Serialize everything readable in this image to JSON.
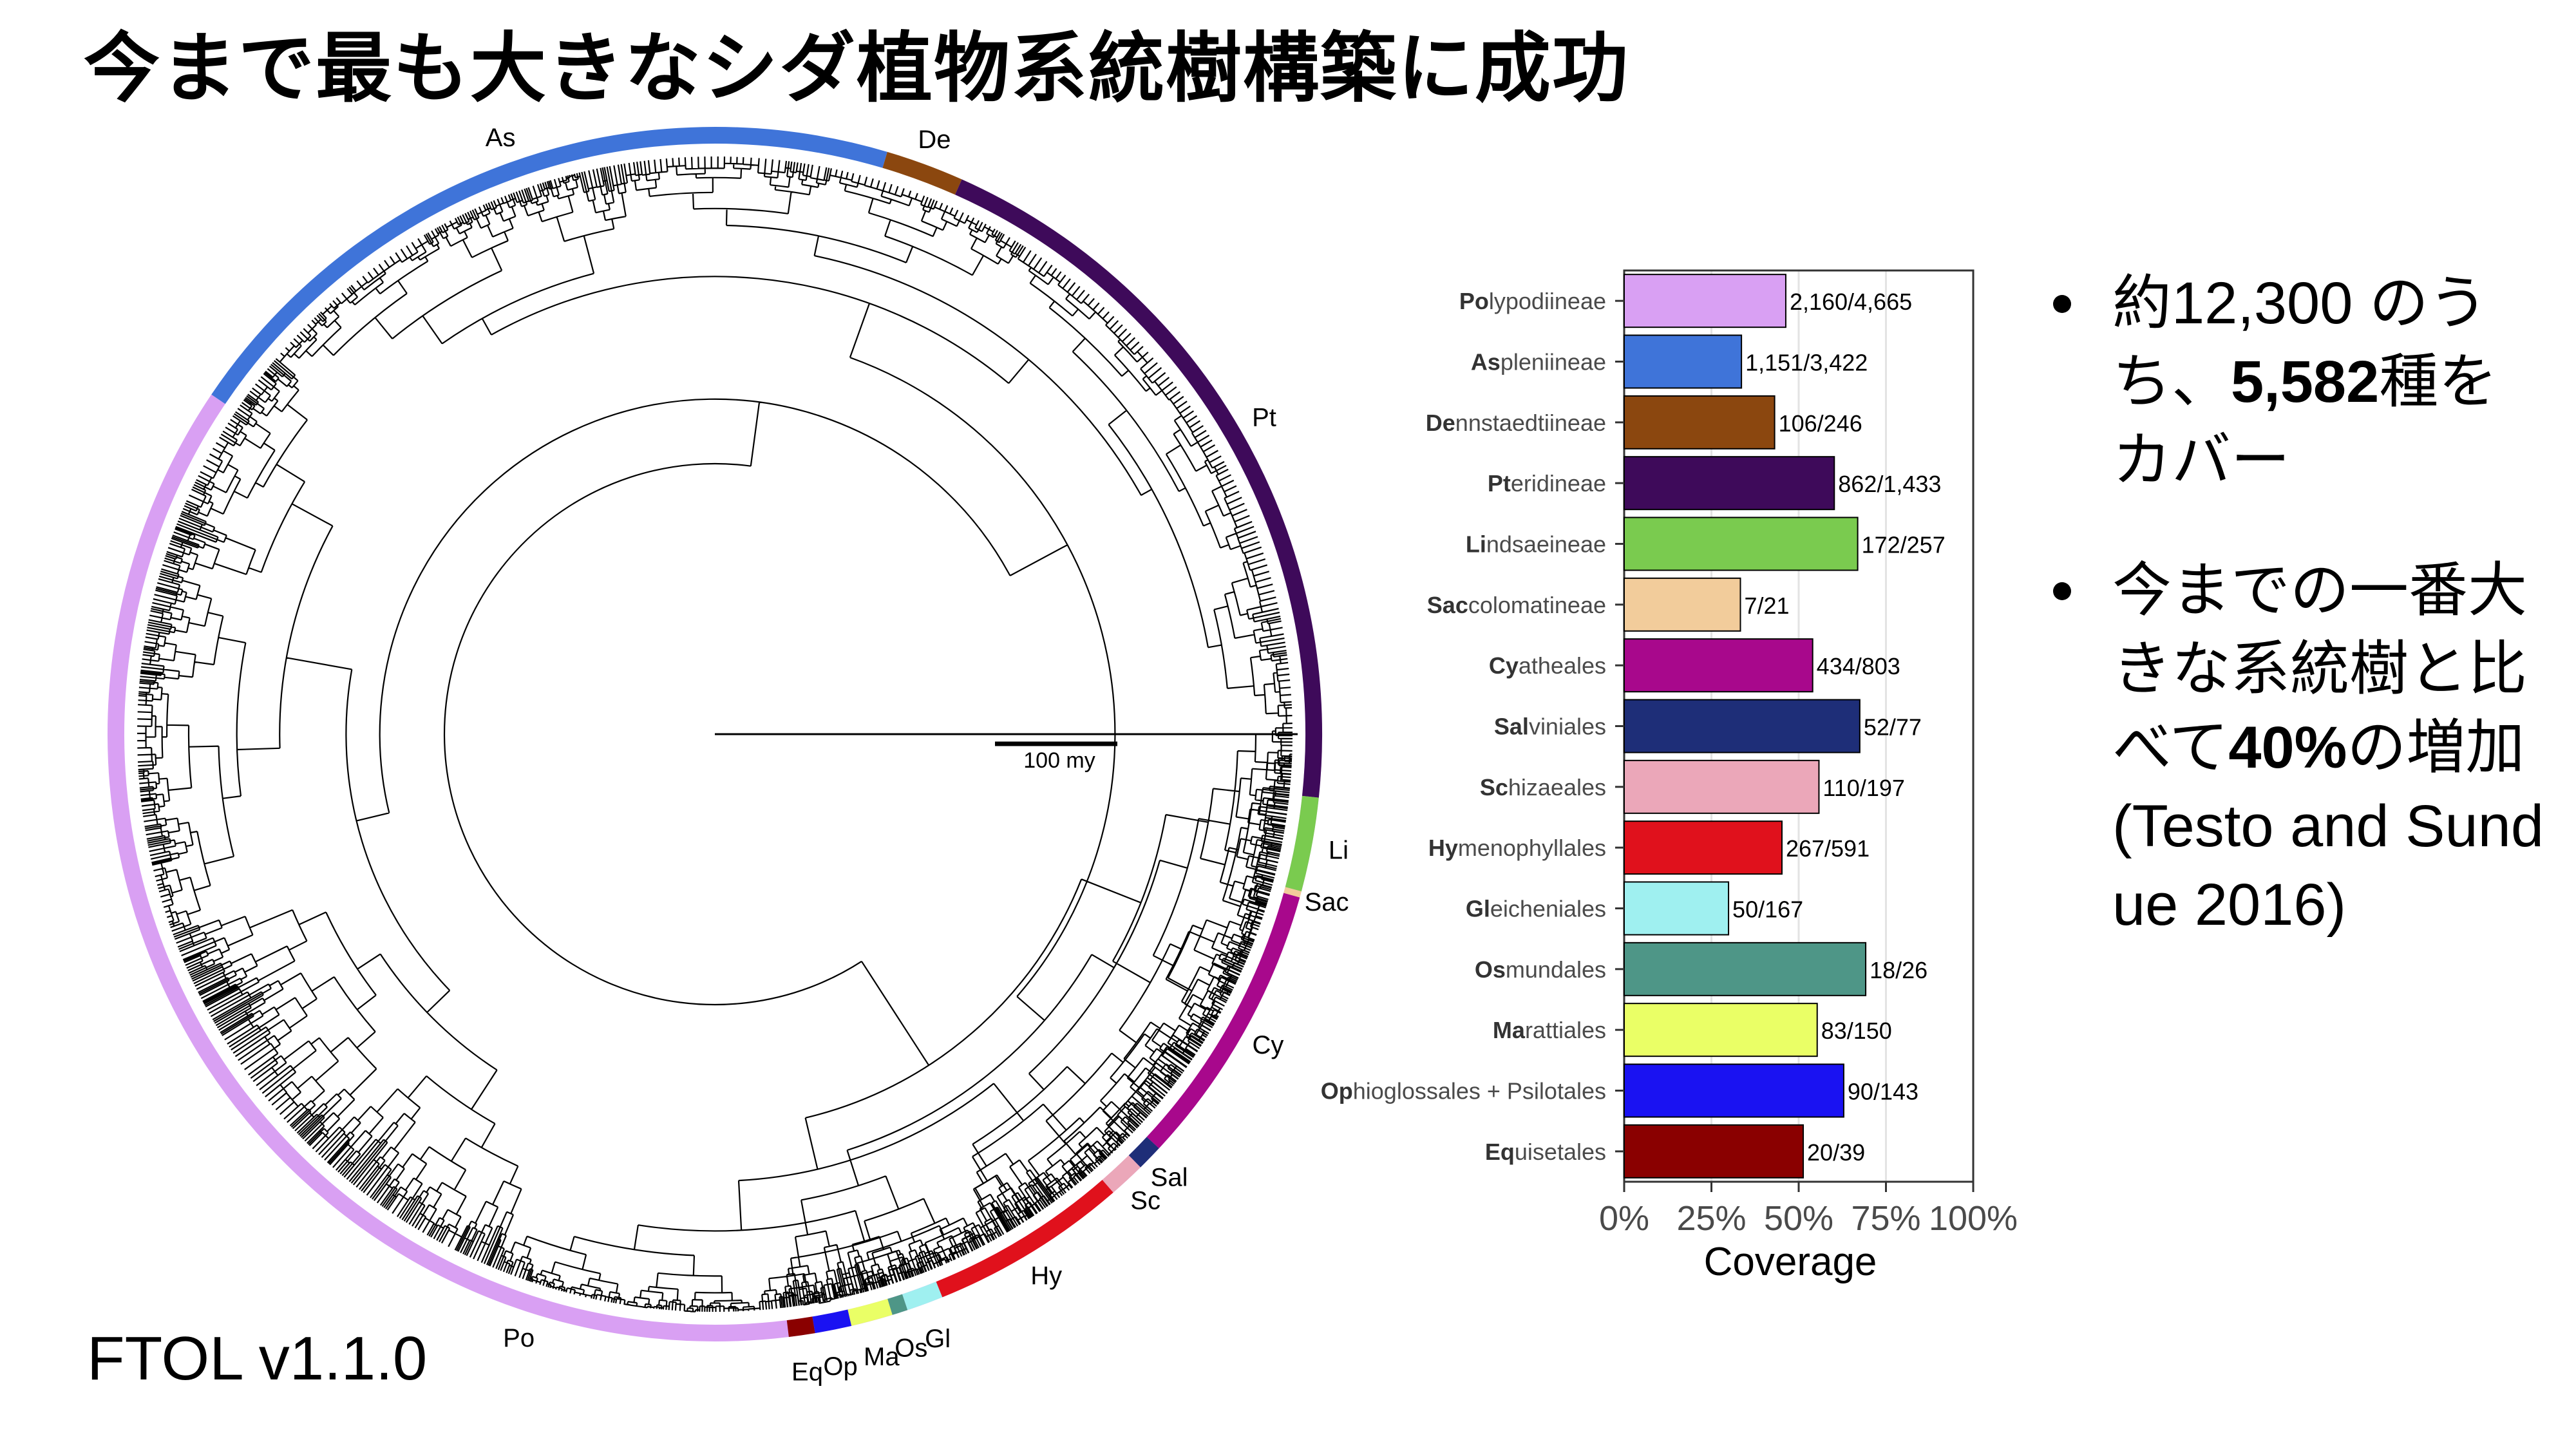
{
  "title": "今まで最も大きなシダ植物系統樹構築に成功",
  "footer_label": "FTOL v1.1.0",
  "tree": {
    "scale_bar_label": "100 my",
    "clades": [
      {
        "label": "Po",
        "color": "#d9a0f3"
      },
      {
        "label": "As",
        "color": "#3f74d9"
      },
      {
        "label": "De",
        "color": "#8b470f"
      },
      {
        "label": "Pt",
        "color": "#3e0a5a"
      },
      {
        "label": "Li",
        "color": "#7acb4f"
      },
      {
        "label": "Sac",
        "color": "#f2cc9b"
      },
      {
        "label": "Cy",
        "color": "#a8088c"
      },
      {
        "label": "Sal",
        "color": "#1e2e78"
      },
      {
        "label": "Sc",
        "color": "#eba7b9"
      },
      {
        "label": "Hy",
        "color": "#e0111c"
      },
      {
        "label": "Gl",
        "color": "#9ff0f0"
      },
      {
        "label": "Os",
        "color": "#4e9687"
      },
      {
        "label": "Ma",
        "color": "#eaff66"
      },
      {
        "label": "Op",
        "color": "#1a12f2"
      },
      {
        "label": "Eq",
        "color": "#8a0000"
      }
    ]
  },
  "chart_data": {
    "type": "bar",
    "orientation": "horizontal",
    "categories": [
      {
        "bold": "Po",
        "rest": "lypodiineae"
      },
      {
        "bold": "As",
        "rest": "pleniineae"
      },
      {
        "bold": "De",
        "rest": "nnstaedtiineae"
      },
      {
        "bold": "Pt",
        "rest": "eridineae"
      },
      {
        "bold": "Li",
        "rest": "ndsaeineae"
      },
      {
        "bold": "Sac",
        "rest": "colomatineae"
      },
      {
        "bold": "Cy",
        "rest": "atheales"
      },
      {
        "bold": "Sal",
        "rest": "viniales"
      },
      {
        "bold": "Sc",
        "rest": "hizaeales"
      },
      {
        "bold": "Hy",
        "rest": "menophyllales"
      },
      {
        "bold": "Gl",
        "rest": "eicheniales"
      },
      {
        "bold": "Os",
        "rest": "mundales"
      },
      {
        "bold": "Ma",
        "rest": "rattiales"
      },
      {
        "bold": "Op",
        "rest": "hioglossales + Psilotales"
      },
      {
        "bold": "Eq",
        "rest": "uisetales"
      }
    ],
    "values": [
      0.463,
      0.336,
      0.431,
      0.602,
      0.669,
      0.333,
      0.54,
      0.675,
      0.558,
      0.452,
      0.299,
      0.692,
      0.553,
      0.629,
      0.513
    ],
    "data_labels": [
      "2,160/4,665",
      "1,151/3,422",
      "106/246",
      "862/1,433",
      "172/257",
      "7/21",
      "434/803",
      "52/77",
      "110/197",
      "267/591",
      "50/167",
      "18/26",
      "83/150",
      "90/143",
      "20/39"
    ],
    "colors": [
      "#d9a0f3",
      "#3f74d9",
      "#8b470f",
      "#3e0a5a",
      "#7acb4f",
      "#f2cc9b",
      "#a8088c",
      "#1e2e78",
      "#eba7b9",
      "#e0111c",
      "#9ff0f0",
      "#4e9687",
      "#eaff66",
      "#1a12f2",
      "#8a0000"
    ],
    "xlim": [
      0,
      1
    ],
    "xticks": [
      "0%",
      "25%",
      "50%",
      "75%",
      "100%"
    ],
    "xlabel": "Coverage",
    "ylabel": "",
    "grid": true
  },
  "bullets": [
    {
      "segments": [
        {
          "text": "約12,300 のうち、",
          "bold": false
        },
        {
          "text": "5,582",
          "bold": true
        },
        {
          "text": "種をカバー",
          "bold": false
        }
      ]
    },
    {
      "segments": [
        {
          "text": "今までの一番大きな系統樹と比べて",
          "bold": false
        },
        {
          "text": "40%",
          "bold": true
        },
        {
          "text": "の増加(Testo and Sundue 2016)",
          "bold": false
        }
      ]
    }
  ]
}
